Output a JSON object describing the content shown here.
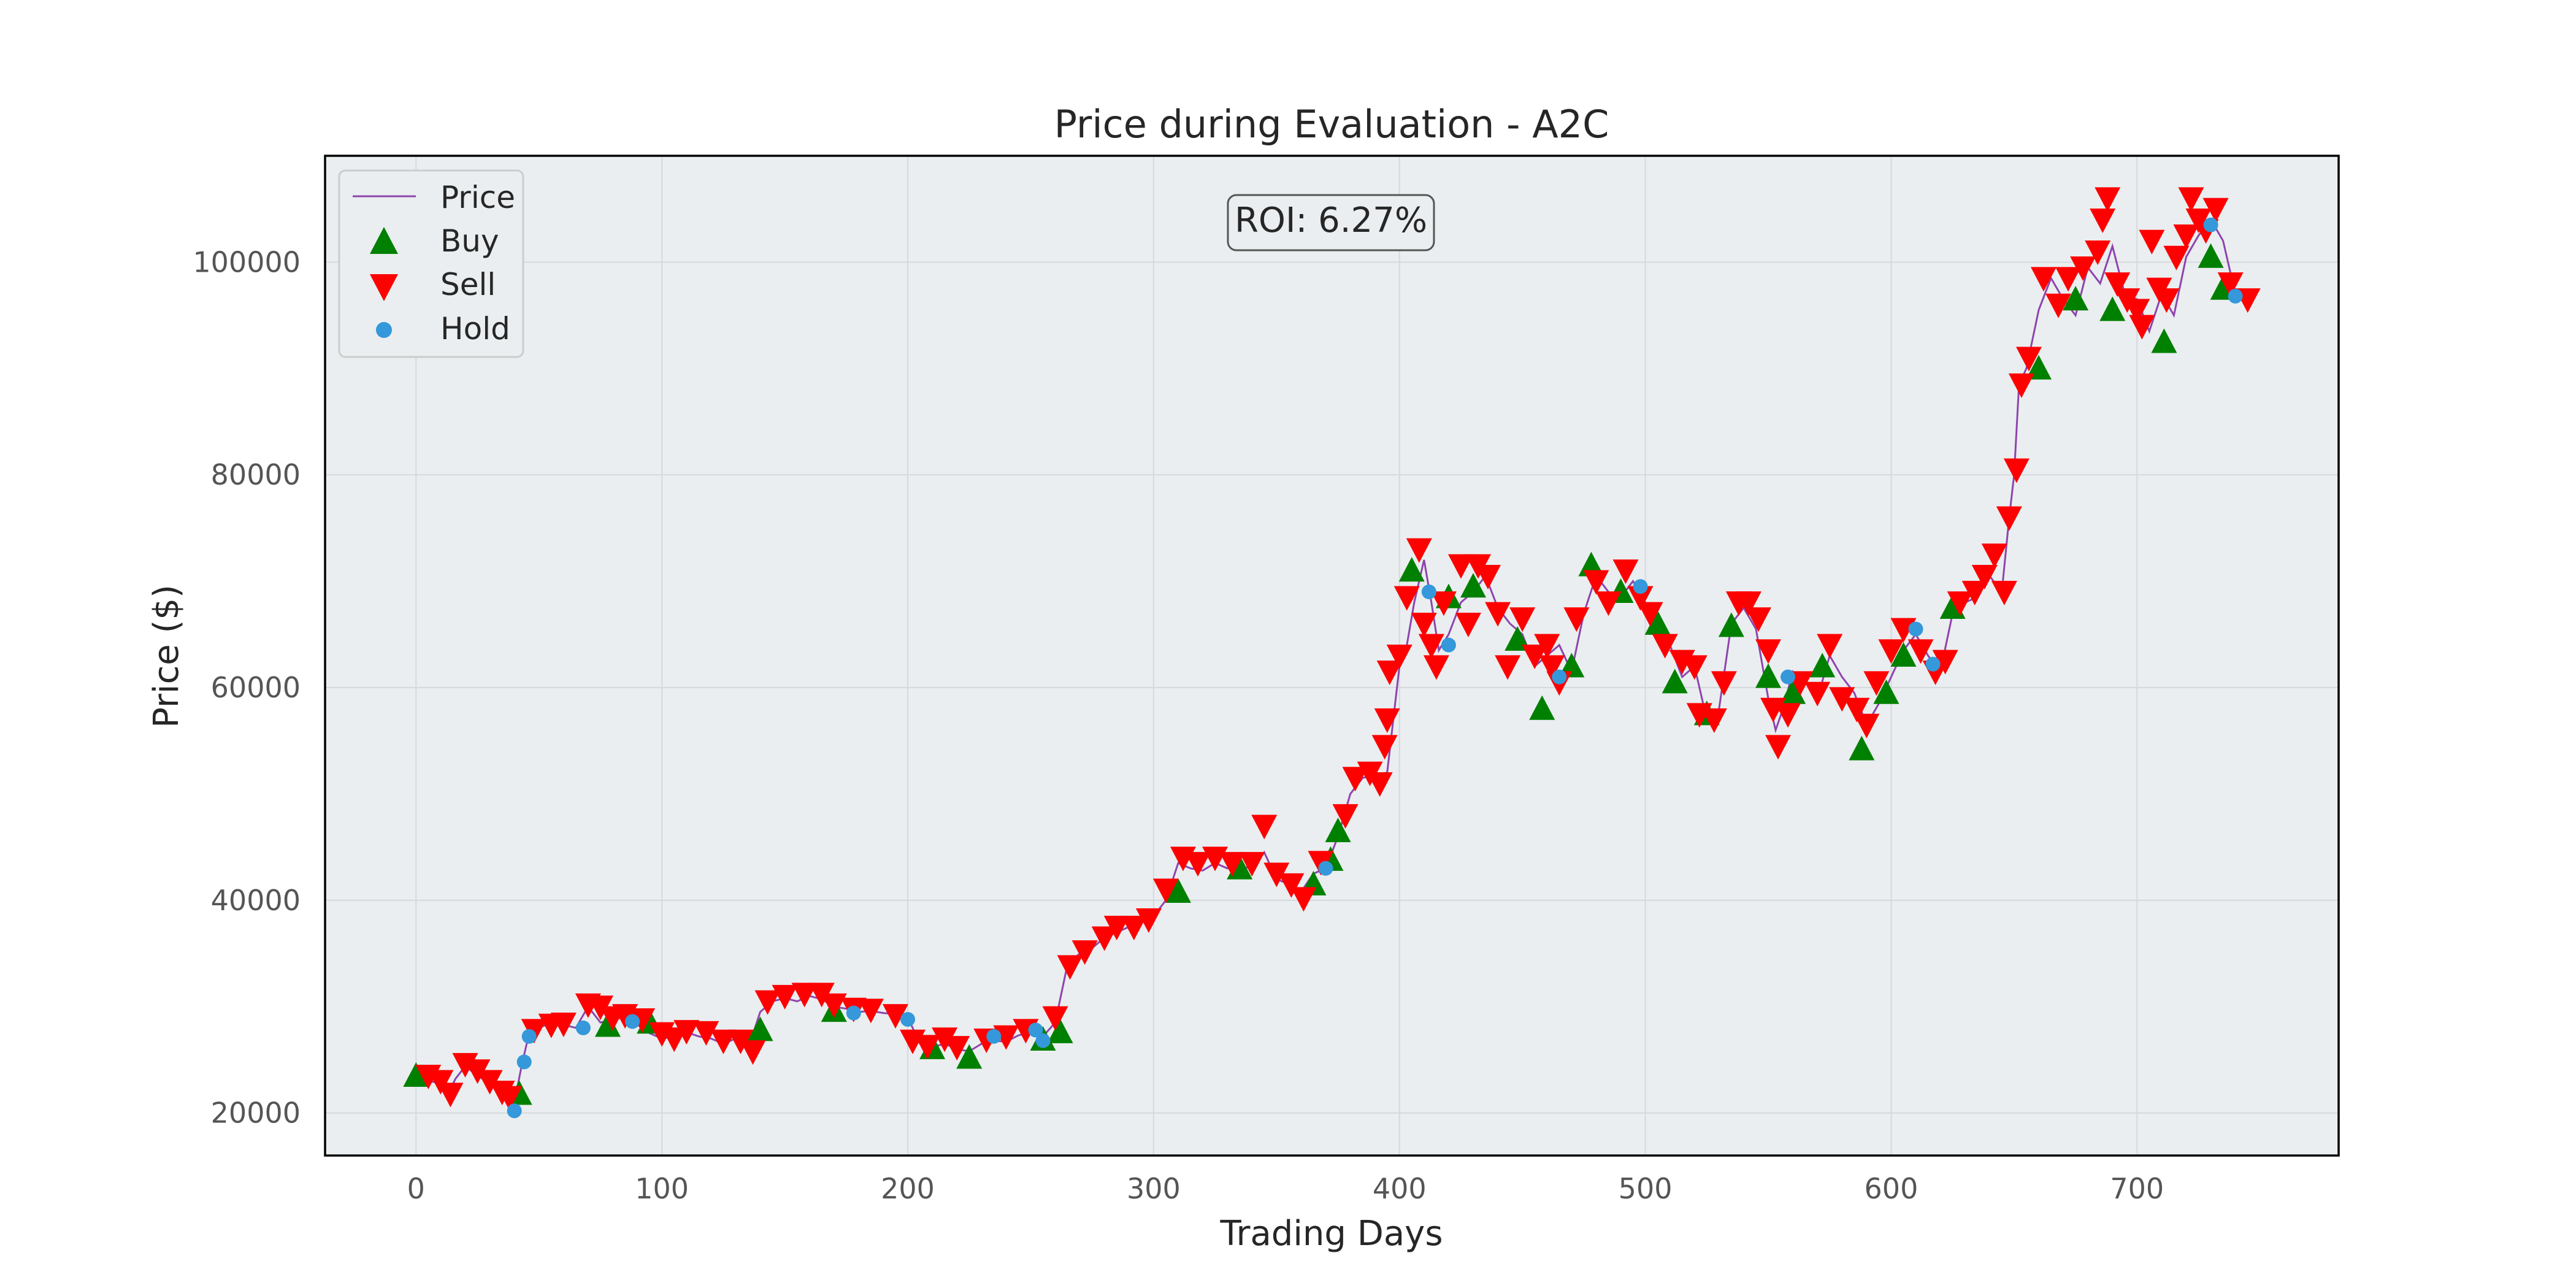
{
  "chart_data": {
    "type": "line",
    "title": "Price during Evaluation - A2C",
    "xlabel": "Trading Days",
    "ylabel": "Price ($)",
    "xlim": [
      -37,
      782
    ],
    "ylim": [
      16000,
      110000
    ],
    "xticks": [
      0,
      100,
      200,
      300,
      400,
      500,
      600,
      700
    ],
    "yticks": [
      20000,
      40000,
      60000,
      80000,
      100000
    ],
    "grid": true,
    "legend_position": "top-left",
    "annotation": "ROI: 6.27%",
    "colors": {
      "price_line": "#8e44ad",
      "buy": "#008000",
      "sell": "#ff0000",
      "hold": "#3498db",
      "plot_background": "#eaeef0"
    },
    "series": [
      {
        "name": "Price",
        "x": [
          0,
          5,
          10,
          13,
          16,
          20,
          25,
          30,
          35,
          40,
          43,
          46,
          50,
          55,
          60,
          65,
          70,
          75,
          80,
          85,
          90,
          95,
          100,
          105,
          110,
          115,
          120,
          125,
          130,
          135,
          140,
          145,
          150,
          155,
          160,
          165,
          170,
          175,
          180,
          185,
          190,
          195,
          200,
          205,
          210,
          215,
          220,
          225,
          230,
          235,
          240,
          245,
          250,
          255,
          260,
          265,
          270,
          275,
          280,
          285,
          290,
          295,
          300,
          305,
          310,
          315,
          320,
          325,
          330,
          335,
          340,
          345,
          350,
          355,
          360,
          365,
          370,
          375,
          380,
          385,
          390,
          395,
          400,
          403,
          406,
          410,
          413,
          416,
          420,
          425,
          430,
          435,
          440,
          445,
          450,
          455,
          460,
          465,
          470,
          475,
          480,
          485,
          490,
          495,
          500,
          505,
          510,
          515,
          520,
          525,
          530,
          535,
          540,
          545,
          550,
          553,
          556,
          560,
          565,
          570,
          575,
          580,
          585,
          590,
          595,
          600,
          605,
          610,
          615,
          620,
          625,
          630,
          635,
          640,
          645,
          648,
          650,
          652,
          655,
          660,
          665,
          670,
          675,
          680,
          685,
          690,
          695,
          700,
          705,
          710,
          715,
          720,
          725,
          730,
          735,
          740,
          745
        ],
        "y": [
          23500,
          23000,
          22800,
          21800,
          23200,
          24400,
          23500,
          22800,
          21800,
          21000,
          24500,
          27500,
          28000,
          28500,
          28300,
          28000,
          30000,
          28500,
          28800,
          29000,
          28300,
          27500,
          27000,
          27200,
          27600,
          27200,
          27000,
          26500,
          27000,
          26000,
          29500,
          30500,
          30800,
          30500,
          31000,
          30700,
          30000,
          29800,
          29500,
          29600,
          29400,
          29300,
          29000,
          26500,
          26200,
          26500,
          26000,
          25800,
          26500,
          26800,
          26700,
          27300,
          27600,
          27200,
          28500,
          34000,
          35000,
          35500,
          36500,
          37000,
          37500,
          38000,
          38500,
          40000,
          43500,
          43000,
          42800,
          43500,
          43000,
          43200,
          43000,
          44500,
          42000,
          41500,
          40800,
          42500,
          43000,
          46000,
          50000,
          51500,
          51800,
          52000,
          62000,
          64000,
          68000,
          72000,
          68000,
          63500,
          65000,
          68000,
          69000,
          70500,
          67500,
          66000,
          65000,
          62000,
          63000,
          64000,
          61500,
          67000,
          70500,
          69000,
          68500,
          70000,
          68000,
          66000,
          64000,
          61000,
          62000,
          57000,
          58000,
          66000,
          67500,
          65500,
          59000,
          56000,
          58000,
          61500,
          60500,
          59000,
          63000,
          61000,
          59500,
          56500,
          58500,
          61000,
          63500,
          65000,
          63000,
          61500,
          67000,
          68000,
          68500,
          70500,
          69000,
          76000,
          80000,
          88500,
          90000,
          95500,
          98500,
          96500,
          95000,
          99500,
          98000,
          101500,
          97000,
          96500,
          93500,
          97000,
          95000,
          100500,
          102500,
          104000,
          102000,
          97000,
          96500
        ]
      }
    ],
    "markers": {
      "buy": {
        "name": "Buy",
        "points": [
          [
            0,
            23500
          ],
          [
            42,
            21800
          ],
          [
            78,
            28200
          ],
          [
            95,
            28500
          ],
          [
            140,
            27800
          ],
          [
            170,
            29600
          ],
          [
            210,
            26100
          ],
          [
            225,
            25200
          ],
          [
            255,
            26900
          ],
          [
            262,
            27600
          ],
          [
            310,
            40800
          ],
          [
            335,
            43000
          ],
          [
            365,
            41500
          ],
          [
            372,
            43800
          ],
          [
            375,
            46500
          ],
          [
            405,
            71000
          ],
          [
            420,
            68500
          ],
          [
            430,
            69500
          ],
          [
            448,
            64500
          ],
          [
            458,
            58000
          ],
          [
            470,
            62000
          ],
          [
            478,
            71500
          ],
          [
            490,
            69000
          ],
          [
            505,
            66000
          ],
          [
            512,
            60500
          ],
          [
            525,
            57500
          ],
          [
            535,
            65800
          ],
          [
            550,
            61000
          ],
          [
            560,
            59500
          ],
          [
            572,
            62000
          ],
          [
            588,
            54200
          ],
          [
            598,
            59500
          ],
          [
            605,
            63000
          ],
          [
            625,
            67500
          ],
          [
            660,
            90000
          ],
          [
            675,
            96500
          ],
          [
            690,
            95500
          ],
          [
            711,
            92500
          ],
          [
            730,
            100500
          ],
          [
            735,
            97500
          ]
        ]
      },
      "sell": {
        "name": "Sell",
        "points": [
          [
            5,
            23500
          ],
          [
            10,
            23000
          ],
          [
            14,
            21800
          ],
          [
            20,
            24600
          ],
          [
            25,
            24000
          ],
          [
            30,
            23000
          ],
          [
            35,
            22000
          ],
          [
            38,
            21500
          ],
          [
            48,
            27800
          ],
          [
            55,
            28300
          ],
          [
            60,
            28400
          ],
          [
            70,
            30200
          ],
          [
            75,
            30000
          ],
          [
            80,
            29000
          ],
          [
            85,
            29200
          ],
          [
            92,
            28800
          ],
          [
            100,
            27500
          ],
          [
            105,
            27000
          ],
          [
            110,
            27700
          ],
          [
            118,
            27600
          ],
          [
            125,
            26800
          ],
          [
            132,
            26800
          ],
          [
            137,
            25800
          ],
          [
            143,
            30500
          ],
          [
            150,
            31000
          ],
          [
            158,
            31200
          ],
          [
            165,
            31200
          ],
          [
            170,
            30200
          ],
          [
            178,
            29800
          ],
          [
            185,
            29700
          ],
          [
            195,
            29200
          ],
          [
            202,
            26800
          ],
          [
            208,
            26300
          ],
          [
            215,
            27000
          ],
          [
            220,
            26200
          ],
          [
            232,
            26900
          ],
          [
            240,
            27200
          ],
          [
            248,
            27800
          ],
          [
            260,
            29000
          ],
          [
            266,
            33800
          ],
          [
            272,
            35200
          ],
          [
            280,
            36500
          ],
          [
            285,
            37500
          ],
          [
            292,
            37500
          ],
          [
            298,
            38200
          ],
          [
            305,
            41000
          ],
          [
            312,
            44000
          ],
          [
            318,
            43500
          ],
          [
            325,
            44000
          ],
          [
            332,
            43500
          ],
          [
            340,
            43500
          ],
          [
            345,
            47000
          ],
          [
            350,
            42500
          ],
          [
            356,
            41500
          ],
          [
            361,
            40200
          ],
          [
            368,
            43600
          ],
          [
            378,
            48000
          ],
          [
            382,
            51500
          ],
          [
            388,
            52000
          ],
          [
            392,
            51000
          ],
          [
            394,
            54500
          ],
          [
            395,
            57000
          ],
          [
            396,
            61500
          ],
          [
            400,
            63000
          ],
          [
            403,
            68500
          ],
          [
            408,
            73000
          ],
          [
            410,
            66000
          ],
          [
            413,
            64000
          ],
          [
            415,
            62000
          ],
          [
            418,
            68000
          ],
          [
            425,
            71500
          ],
          [
            428,
            66000
          ],
          [
            432,
            71500
          ],
          [
            436,
            70500
          ],
          [
            440,
            67000
          ],
          [
            444,
            62000
          ],
          [
            450,
            66500
          ],
          [
            455,
            63000
          ],
          [
            460,
            64000
          ],
          [
            462,
            62000
          ],
          [
            465,
            60500
          ],
          [
            472,
            66500
          ],
          [
            480,
            70000
          ],
          [
            485,
            68000
          ],
          [
            492,
            71000
          ],
          [
            498,
            68500
          ],
          [
            502,
            67000
          ],
          [
            508,
            64000
          ],
          [
            515,
            62500
          ],
          [
            520,
            62000
          ],
          [
            522,
            57500
          ],
          [
            528,
            57000
          ],
          [
            532,
            60500
          ],
          [
            538,
            68000
          ],
          [
            542,
            68000
          ],
          [
            546,
            66500
          ],
          [
            550,
            63500
          ],
          [
            552,
            58000
          ],
          [
            554,
            54500
          ],
          [
            558,
            57500
          ],
          [
            563,
            60500
          ],
          [
            570,
            59500
          ],
          [
            575,
            64000
          ],
          [
            580,
            59000
          ],
          [
            586,
            58000
          ],
          [
            590,
            56500
          ],
          [
            594,
            60500
          ],
          [
            600,
            63500
          ],
          [
            605,
            65500
          ],
          [
            612,
            63500
          ],
          [
            618,
            61500
          ],
          [
            622,
            62500
          ],
          [
            628,
            68000
          ],
          [
            634,
            69000
          ],
          [
            638,
            70500
          ],
          [
            642,
            72500
          ],
          [
            646,
            69000
          ],
          [
            648,
            76000
          ],
          [
            651,
            80500
          ],
          [
            653,
            88500
          ],
          [
            656,
            91000
          ],
          [
            662,
            98500
          ],
          [
            668,
            96000
          ],
          [
            672,
            98500
          ],
          [
            678,
            99500
          ],
          [
            684,
            101000
          ],
          [
            686,
            104000
          ],
          [
            688,
            106000
          ],
          [
            692,
            98000
          ],
          [
            696,
            96500
          ],
          [
            700,
            95500
          ],
          [
            702,
            94000
          ],
          [
            706,
            102000
          ],
          [
            709,
            97500
          ],
          [
            712,
            96500
          ],
          [
            716,
            100500
          ],
          [
            720,
            102500
          ],
          [
            722,
            106000
          ],
          [
            725,
            104000
          ],
          [
            728,
            103000
          ],
          [
            732,
            105000
          ],
          [
            738,
            98000
          ],
          [
            745,
            96500
          ]
        ]
      },
      "hold": {
        "name": "Hold",
        "points": [
          [
            40,
            20200
          ],
          [
            44,
            24800
          ],
          [
            46,
            27200
          ],
          [
            68,
            28000
          ],
          [
            88,
            28600
          ],
          [
            178,
            29400
          ],
          [
            200,
            28800
          ],
          [
            235,
            27200
          ],
          [
            252,
            27800
          ],
          [
            255,
            26800
          ],
          [
            370,
            43000
          ],
          [
            412,
            69000
          ],
          [
            420,
            64000
          ],
          [
            465,
            61000
          ],
          [
            498,
            69500
          ],
          [
            558,
            61000
          ],
          [
            610,
            65500
          ],
          [
            617,
            62200
          ],
          [
            730,
            103500
          ],
          [
            740,
            96800
          ]
        ]
      }
    }
  }
}
